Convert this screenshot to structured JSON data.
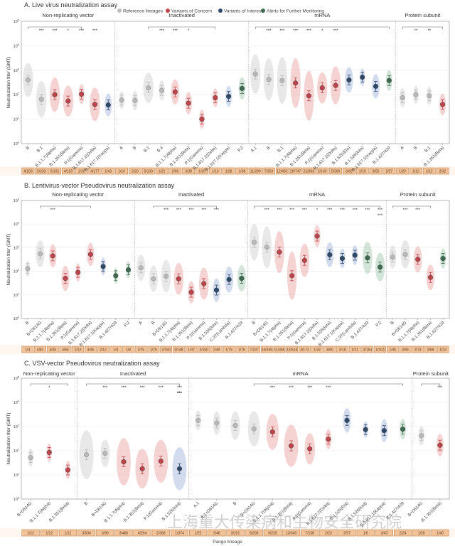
{
  "legend": [
    {
      "label": "Reference lineages",
      "color": "#bdbdbd"
    },
    {
      "label": "Variants of Concern",
      "color": "#c0444a"
    },
    {
      "label": "Variants of Interest",
      "color": "#2e4a6b"
    },
    {
      "label": "Alerts for Further Monitoring",
      "color": "#3d6b4f"
    }
  ],
  "x_axis_title": "Pango lineage",
  "y_axis_title": "Neutralization titer (GMT)",
  "watermark": "上海重大传染病和生物安全研究院",
  "chart_data": [
    {
      "type": "scatter",
      "title": "A. Live virus neutralization assay",
      "ylabel": "Neutralization titer (GMT)",
      "yscale": "log",
      "ylim": [
        1,
        100000
      ],
      "yticks": [
        "10^0",
        "10^1",
        "10^2",
        "10^3",
        "10^4",
        "10^5"
      ],
      "groups": [
        {
          "name": "Non-replicating vector",
          "lineages": [
            {
              "label": "B",
              "gmt": 400,
              "cat": "ref",
              "ratio": "4/183"
            },
            {
              "label": "B.1",
              "gmt": 65,
              "cat": "ref",
              "ratio": "5/233"
            },
            {
              "label": "B.1.1.7(Alpha)",
              "gmt": 100,
              "cat": "voc",
              "ratio": "5/191"
            },
            {
              "label": "B.1.351(Beta)",
              "gmt": 55,
              "cat": "voc",
              "ratio": "4/139"
            },
            {
              "label": "P.1(Gamma)",
              "gmt": 105,
              "cat": "voc",
              "ratio": "1/20"
            },
            {
              "label": "B.1.617.2(Delta)",
              "gmt": 40,
              "cat": "voc",
              "ratio": "4/177"
            },
            {
              "label": "B.1.617.1(Kappa)",
              "gmt": 38,
              "cat": "voi",
              "ratio": "1/43"
            }
          ]
        },
        {
          "name": "Inactivated",
          "lineages": [
            {
              "label": "A",
              "gmt": 60,
              "cat": "ref",
              "ratio": "1/10"
            },
            {
              "label": "B",
              "gmt": 58,
              "cat": "ref",
              "ratio": "2/20"
            },
            {
              "label": "B.1",
              "gmt": 190,
              "cat": "ref",
              "ratio": "5/130"
            },
            {
              "label": "B.4",
              "gmt": 150,
              "cat": "ref",
              "ratio": "1/21"
            },
            {
              "label": "B.1.1.7(Alpha)",
              "gmt": 130,
              "cat": "voc",
              "ratio": "2/66"
            },
            {
              "label": "B.1.351(Beta)",
              "gmt": 45,
              "cat": "voc",
              "ratio": "3/38"
            },
            {
              "label": "P.1(Gamma)",
              "gmt": 10,
              "cat": "voc",
              "ratio": "1/16"
            },
            {
              "label": "B.1.617.2(Delta)",
              "gmt": 75,
              "cat": "voc",
              "ratio": "1/16"
            },
            {
              "label": "B.1.617.1(Kappa)",
              "gmt": 85,
              "cat": "voi",
              "ratio": "1/28"
            },
            {
              "label": "P.2",
              "gmt": 180,
              "cat": "afm",
              "ratio": "1/38"
            }
          ]
        },
        {
          "name": "mRNA",
          "lineages": [
            {
              "label": "A.1",
              "gmt": 700,
              "cat": "ref",
              "ratio": "11/289"
            },
            {
              "label": "B",
              "gmt": 420,
              "cat": "ref",
              "ratio": "7/353"
            },
            {
              "label": "B.1",
              "gmt": 380,
              "cat": "ref",
              "ratio": "12/482"
            },
            {
              "label": "B.1.1.7(Alpha)",
              "gmt": 300,
              "cat": "voc",
              "ratio": "20/747"
            },
            {
              "label": "B.1.351(Beta)",
              "gmt": 90,
              "cat": "voc",
              "ratio": "21/836"
            },
            {
              "label": "P.1(Gamma)",
              "gmt": 190,
              "cat": "voc",
              "ratio": "5/140"
            },
            {
              "label": "B.1.617.2(Delta)",
              "gmt": 240,
              "cat": "voc",
              "ratio": "5/260"
            },
            {
              "label": "B.1.525(Eta)",
              "gmt": 400,
              "cat": "voi",
              "ratio": "3/68"
            },
            {
              "label": "B.1.526(Iota)",
              "gmt": 520,
              "cat": "voi",
              "ratio": "1/10"
            },
            {
              "label": "B.1.617.1(Kappa)",
              "gmt": 220,
              "cat": "voi",
              "ratio": "3/55"
            },
            {
              "label": "B.1.427/429",
              "gmt": 380,
              "cat": "afm",
              "ratio": "2/27"
            }
          ]
        },
        {
          "name": "Protein subunit",
          "lineages": [
            {
              "label": "A",
              "gmt": 75,
              "cat": "ref",
              "ratio": "1/20"
            },
            {
              "label": "B",
              "gmt": 100,
              "cat": "ref",
              "ratio": "1/12"
            },
            {
              "label": "B.1",
              "gmt": 90,
              "cat": "ref",
              "ratio": "1/12"
            },
            {
              "label": "B.1.351(Beta)",
              "gmt": 40,
              "cat": "voc",
              "ratio": "2/32"
            }
          ]
        }
      ],
      "significance": [
        {
          "group": 0,
          "from": 0,
          "to": 4,
          "marks": [
            "***",
            "***",
            "*",
            "***",
            "***"
          ]
        },
        {
          "group": 1,
          "from": 2,
          "to": 7,
          "marks": [
            "***",
            "***",
            "*"
          ]
        },
        {
          "group": 2,
          "from": 0,
          "to": 10,
          "marks": [
            "***",
            "***",
            "***",
            "***",
            "*",
            "***"
          ]
        },
        {
          "group": 3,
          "from": 0,
          "to": 3,
          "marks": [
            "**",
            "**"
          ]
        }
      ]
    },
    {
      "type": "scatter",
      "title": "B. Lentivirus-vector Pseudovirus neutralization assay",
      "ylabel": "Neutralization titer (GMT)",
      "yscale": "log",
      "ylim": [
        1,
        100000
      ],
      "yticks": [
        "10^0",
        "10^1",
        "10^2",
        "10^3",
        "10^4",
        "10^5"
      ],
      "groups": [
        {
          "name": "Non-replicating vector",
          "lineages": [
            {
              "label": "B",
              "gmt": 130,
              "cat": "ref",
              "ratio": "1/4"
            },
            {
              "label": "B+D614G",
              "gmt": 550,
              "cat": "ref",
              "ratio": "4/81"
            },
            {
              "label": "B.1.1.7(Alpha)",
              "gmt": 450,
              "cat": "voc",
              "ratio": "3/45"
            },
            {
              "label": "B.1.351(Beta)",
              "gmt": 50,
              "cat": "voc",
              "ratio": "4/65"
            },
            {
              "label": "P.1(Gamma)",
              "gmt": 90,
              "cat": "voc",
              "ratio": "2/12"
            },
            {
              "label": "B.1.617.2(Delta)",
              "gmt": 520,
              "cat": "voc",
              "ratio": "3/45"
            },
            {
              "label": "B.1.617.1(Kappa)",
              "gmt": 160,
              "cat": "voi",
              "ratio": "2/12"
            },
            {
              "label": "B.1.427/429",
              "gmt": 65,
              "cat": "afm",
              "ratio": "1/4"
            },
            {
              "label": "P.2",
              "gmt": 115,
              "cat": "afm",
              "ratio": "1/8"
            }
          ]
        },
        {
          "name": "Inactivated",
          "lineages": [
            {
              "label": "A",
              "gmt": 140,
              "cat": "ref",
              "ratio": "1/75"
            },
            {
              "label": "B",
              "gmt": 48,
              "cat": "ref",
              "ratio": "1/75"
            },
            {
              "label": "B+D614G",
              "gmt": 62,
              "cat": "ref",
              "ratio": "2/160"
            },
            {
              "label": "B.1.1.7(Alpha)",
              "gmt": 48,
              "cat": "voc",
              "ratio": "2/148"
            },
            {
              "label": "B.1.351(Beta)",
              "gmt": 13,
              "cat": "voc",
              "ratio": "1/37"
            },
            {
              "label": "P.1(Gamma)",
              "gmt": 30,
              "cat": "voc",
              "ratio": "2/150"
            },
            {
              "label": "B.1.526(Iota)",
              "gmt": 16,
              "cat": "voi",
              "ratio": "1/49"
            },
            {
              "label": "C.37(Lambda)",
              "gmt": 45,
              "cat": "voi",
              "ratio": "1/75"
            },
            {
              "label": "B.1.427/429",
              "gmt": 50,
              "cat": "afm",
              "ratio": "1/76"
            }
          ]
        },
        {
          "name": "mRNA",
          "lineages": [
            {
              "label": "B",
              "gmt": 1700,
              "cat": "ref",
              "ratio": "7/237"
            },
            {
              "label": "B+D614G",
              "gmt": 1050,
              "cat": "ref",
              "ratio": "14/349"
            },
            {
              "label": "B.1.1.7(Alpha)",
              "gmt": 650,
              "cat": "voc",
              "ratio": "11/346"
            },
            {
              "label": "B.1.351(Beta)",
              "gmt": 65,
              "cat": "voc",
              "ratio": "12/513"
            },
            {
              "label": "P.1(Gamma)",
              "gmt": 290,
              "cat": "voc",
              "ratio": "3/172"
            },
            {
              "label": "B.1.617.2(Delta)",
              "gmt": 3100,
              "cat": "voc",
              "ratio": "1/32"
            },
            {
              "label": "B.1.526(Iota)",
              "gmt": 500,
              "cat": "voi",
              "ratio": "3/60"
            },
            {
              "label": "B.1.617.1(Kappa)",
              "gmt": 350,
              "cat": "voi",
              "ratio": "2/18"
            },
            {
              "label": "C.37(Lambda)",
              "gmt": 480,
              "cat": "voi",
              "ratio": "1/21"
            },
            {
              "label": "B.1.427/429",
              "gmt": 370,
              "cat": "afm",
              "ratio": "3/154"
            },
            {
              "label": "P.2",
              "gmt": 150,
              "cat": "afm",
              "ratio": "1/104"
            }
          ]
        },
        {
          "name": "Protein subunit",
          "lineages": [
            {
              "label": "B",
              "gmt": 400,
              "cat": "ref",
              "ratio": "1/45"
            },
            {
              "label": "B+D614G",
              "gmt": 520,
              "cat": "ref",
              "ratio": "3/96"
            },
            {
              "label": "B.1.1.7(Alpha)",
              "gmt": 320,
              "cat": "voc",
              "ratio": "2/73"
            },
            {
              "label": "B.1.351(Beta)",
              "gmt": 55,
              "cat": "voc",
              "ratio": "2/68"
            },
            {
              "label": "B.1.427/429",
              "gmt": 350,
              "cat": "afm",
              "ratio": "1/23"
            }
          ]
        }
      ],
      "significance": [
        {
          "group": 0,
          "from": 1,
          "to": 5,
          "marks": [
            "***"
          ]
        },
        {
          "group": 1,
          "from": 1,
          "to": 6,
          "marks": [
            "***",
            "***",
            "***",
            "***",
            "***"
          ]
        },
        {
          "group": 2,
          "from": 0,
          "to": 10,
          "marks": [
            "***",
            "***",
            "***",
            "***",
            "*",
            "***",
            "***",
            "***",
            "***",
            "***",
            "***"
          ]
        },
        {
          "group": 3,
          "from": 0,
          "to": 3,
          "marks": [
            "***",
            "***"
          ]
        }
      ]
    },
    {
      "type": "scatter",
      "title": "C. VSV-vector Pseudovirus neutralization assay",
      "ylabel": "Neutralization titer (GMT)",
      "yscale": "log",
      "ylim": [
        1,
        100000
      ],
      "yticks": [
        "10^0",
        "10^1",
        "10^2",
        "10^3",
        "10^4",
        "10^5"
      ],
      "groups": [
        {
          "name": "Non-replicating vector",
          "lineages": [
            {
              "label": "B+D614G",
              "gmt": 52,
              "cat": "ref",
              "ratio": "1/12"
            },
            {
              "label": "B.1.1.7(Alpha)",
              "gmt": 85,
              "cat": "voc",
              "ratio": "1/12"
            },
            {
              "label": "B.1.351(Beta)",
              "gmt": 16,
              "cat": "voc",
              "ratio": "1/12"
            }
          ]
        },
        {
          "name": "Inactivated",
          "lineages": [
            {
              "label": "B",
              "gmt": 68,
              "cat": "ref",
              "ratio": "3/534"
            },
            {
              "label": "B+D614G",
              "gmt": 78,
              "cat": "ref",
              "ratio": "3/90"
            },
            {
              "label": "B.1.1.7(Alpha)",
              "gmt": 35,
              "cat": "voc",
              "ratio": "3/486"
            },
            {
              "label": "B.1.351(Beta)",
              "gmt": 18,
              "cat": "voc",
              "ratio": "4/294"
            },
            {
              "label": "P.1(Gamma)",
              "gmt": 37,
              "cat": "voc",
              "ratio": "2/368"
            },
            {
              "label": "B.1.526(Iota)",
              "gmt": 18,
              "cat": "voi",
              "ratio": "1/374"
            }
          ]
        },
        {
          "name": "mRNA",
          "lineages": [
            {
              "label": "A.1",
              "gmt": 1800,
              "cat": "ref",
              "ratio": "1/22"
            },
            {
              "label": "A.1+D614G",
              "gmt": 1400,
              "cat": "ref",
              "ratio": "2/46"
            },
            {
              "label": "B",
              "gmt": 1100,
              "cat": "ref",
              "ratio": "3/101"
            },
            {
              "label": "B+D614G",
              "gmt": 800,
              "cat": "ref",
              "ratio": "9/203"
            },
            {
              "label": "B.1.1.7(Alpha)",
              "gmt": 600,
              "cat": "voc",
              "ratio": "9/220"
            },
            {
              "label": "B.1.351(Beta)",
              "gmt": 160,
              "cat": "voc",
              "ratio": "13/349"
            },
            {
              "label": "P.1(Gamma)",
              "gmt": 120,
              "cat": "voc",
              "ratio": "7/138"
            },
            {
              "label": "B.1.617.2(Delta)",
              "gmt": 300,
              "cat": "voc",
              "ratio": "2/23"
            },
            {
              "label": "B.1.525(Eta)",
              "gmt": 1800,
              "cat": "voi",
              "ratio": "2/57"
            },
            {
              "label": "B.1.526(Iota)",
              "gmt": 750,
              "cat": "voi",
              "ratio": "1/6"
            },
            {
              "label": "B.1.617.1(Kappa)",
              "gmt": 680,
              "cat": "voi",
              "ratio": "3/43"
            },
            {
              "label": "B.1.427/429",
              "gmt": 780,
              "cat": "afm",
              "ratio": "2/24"
            }
          ]
        },
        {
          "name": "Protein subunit",
          "lineages": [
            {
              "label": "B+D614G",
              "gmt": 420,
              "cat": "ref",
              "ratio": "1/20"
            },
            {
              "label": "B.1.351(Beta)",
              "gmt": 170,
              "cat": "voc",
              "ratio": "1/40"
            }
          ]
        }
      ],
      "significance": [
        {
          "group": 0,
          "from": 0,
          "to": 2,
          "marks": [
            "*"
          ]
        },
        {
          "group": 1,
          "from": 0,
          "to": 5,
          "marks": [
            "***",
            "***",
            "***",
            "***",
            "***",
            "***",
            "***",
            "***"
          ]
        },
        {
          "group": 2,
          "from": 3,
          "to": 11,
          "marks": [
            "***",
            "***",
            "***",
            "***"
          ]
        },
        {
          "group": 3,
          "from": 0,
          "to": 1,
          "marks": [
            "***"
          ]
        }
      ]
    }
  ]
}
